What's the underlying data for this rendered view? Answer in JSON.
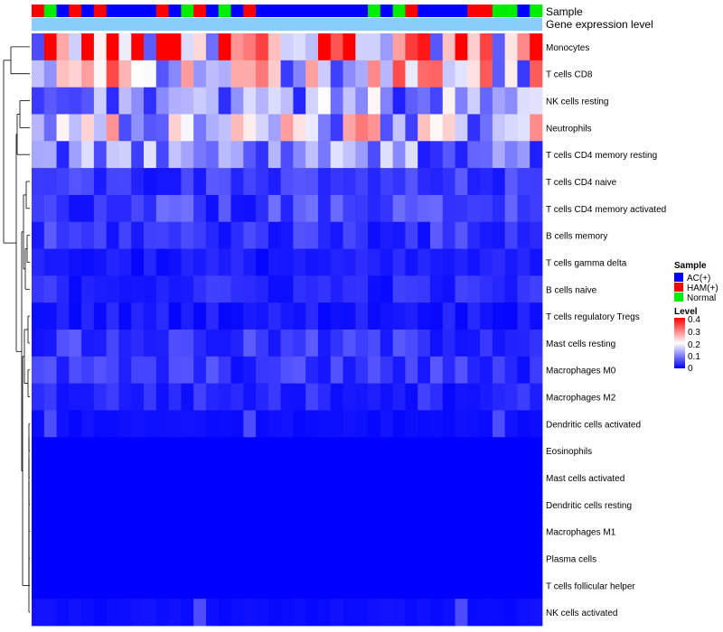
{
  "chart_data": {
    "type": "heatmap",
    "title": "",
    "annotation_rows": [
      "Sample",
      "Gene expression level"
    ],
    "annotation_colors": {
      "AC(+)": "#0000ff",
      "HAM(+)": "#ff0000",
      "Normal": "#00ee00",
      "Gene expression level": "#87cefa"
    },
    "sample_groups": [
      "HAM(+)",
      "Normal",
      "AC(+)",
      "HAM(+)",
      "AC(+)",
      "HAM(+)",
      "AC(+)",
      "AC(+)",
      "AC(+)",
      "AC(+)",
      "HAM(+)",
      "AC(+)",
      "Normal",
      "HAM(+)",
      "AC(+)",
      "Normal",
      "AC(+)",
      "HAM(+)",
      "AC(+)",
      "AC(+)",
      "AC(+)",
      "AC(+)",
      "AC(+)",
      "AC(+)",
      "AC(+)",
      "AC(+)",
      "AC(+)",
      "Normal",
      "AC(+)",
      "Normal",
      "HAM(+)",
      "AC(+)",
      "AC(+)",
      "AC(+)",
      "AC(+)",
      "HAM(+)",
      "HAM(+)",
      "Normal",
      "Normal",
      "AC(+)",
      "Normal"
    ],
    "rows": [
      "Monocytes",
      "T cells CD8",
      "NK cells resting",
      "Neutrophils",
      "T cells CD4 memory resting",
      "T cells CD4 naive",
      "T cells CD4 memory activated",
      "B cells memory",
      "T cells gamma delta",
      "B cells naive",
      "T cells regulatory  Tregs",
      "Mast cells resting",
      "Macrophages M0",
      "Macrophages M2",
      "Dendritic cells activated",
      "Eosinophils",
      "Mast cells activated",
      "Dendritic cells resting",
      "Macrophages M1",
      "Plasma cells",
      "T cells follicular helper",
      "NK cells activated"
    ],
    "row_means": [
      0.3,
      0.2,
      0.12,
      0.17,
      0.1,
      0.04,
      0.05,
      0.04,
      0.02,
      0.03,
      0.02,
      0.04,
      0.04,
      0.03,
      0.01,
      0.0,
      0.0,
      0.0,
      0.0,
      0.0,
      0.0,
      0.01
    ],
    "legend": {
      "sample_title": "Sample",
      "sample_entries": [
        "AC(+)",
        "HAM(+)",
        "Normal"
      ],
      "level_title": "Level",
      "level_ticks": [
        "0.4",
        "0.3",
        "0.2",
        "0.1",
        "0"
      ],
      "level_range": [
        0,
        0.4
      ],
      "level_colors": [
        "#0000ff",
        "#ffffff",
        "#ff0000"
      ]
    }
  }
}
